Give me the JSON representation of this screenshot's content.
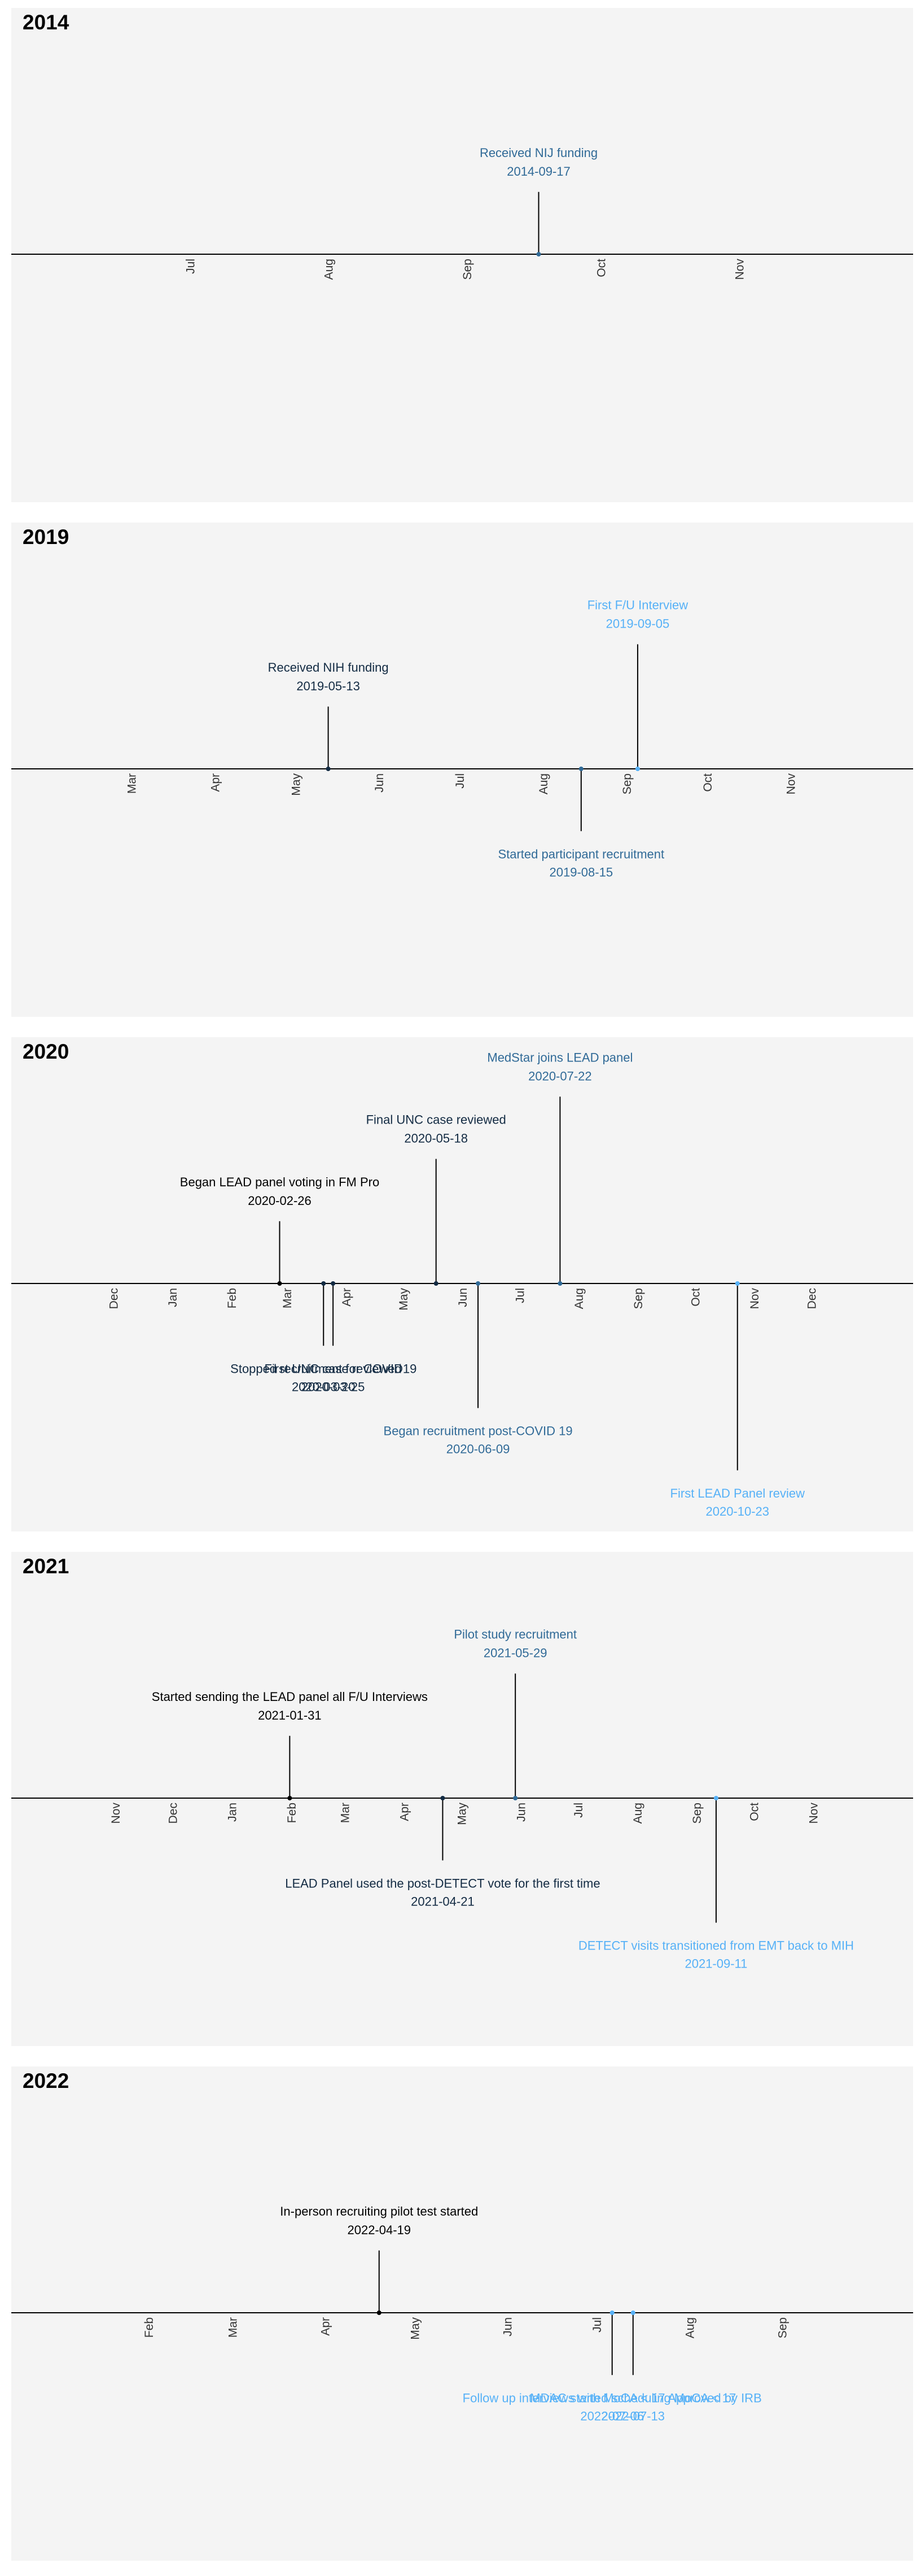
{
  "colors": {
    "panel_bg": "#f4f4f4",
    "axis": "#000000",
    "palette": {
      "black": "#000000",
      "navy": "#132b43",
      "mid_blue": "#306a97",
      "light_blue": "#56b1f7"
    }
  },
  "chart_data": [
    {
      "type": "timeline",
      "title": "2014",
      "x_range": [
        "2014-06-01",
        "2014-11-30"
      ],
      "ticks": [
        {
          "date": "2014-07-01",
          "label": "Jul"
        },
        {
          "date": "2014-08-01",
          "label": "Aug"
        },
        {
          "date": "2014-09-01",
          "label": "Sep"
        },
        {
          "date": "2014-10-01",
          "label": "Oct"
        },
        {
          "date": "2014-11-01",
          "label": "Nov"
        }
      ],
      "events": [
        {
          "date": "2014-09-17",
          "label": "Received NIJ funding",
          "date_label": "2014-09-17",
          "level": 0.75,
          "color": "mid_blue"
        }
      ]
    },
    {
      "type": "timeline",
      "title": "2019",
      "x_range": [
        "2019-02-01",
        "2019-11-30"
      ],
      "ticks": [
        {
          "date": "2019-03-01",
          "label": "Mar"
        },
        {
          "date": "2019-04-01",
          "label": "Apr"
        },
        {
          "date": "2019-05-01",
          "label": "May"
        },
        {
          "date": "2019-06-01",
          "label": "Jun"
        },
        {
          "date": "2019-07-01",
          "label": "Jul"
        },
        {
          "date": "2019-08-01",
          "label": "Aug"
        },
        {
          "date": "2019-09-01",
          "label": "Sep"
        },
        {
          "date": "2019-10-01",
          "label": "Oct"
        },
        {
          "date": "2019-11-01",
          "label": "Nov"
        }
      ],
      "events": [
        {
          "date": "2019-05-13",
          "label": "Received NIH funding",
          "date_label": "2019-05-13",
          "level": 0.75,
          "color": "navy"
        },
        {
          "date": "2019-08-15",
          "label": "Started participant recruitment",
          "date_label": "2019-08-15",
          "level": -0.75,
          "color": "mid_blue"
        },
        {
          "date": "2019-09-05",
          "label": "First F/U Interview",
          "date_label": "2019-09-05",
          "level": 1.5,
          "color": "light_blue"
        }
      ]
    },
    {
      "type": "timeline",
      "title": "2020",
      "x_range": [
        "2019-11-01",
        "2020-12-31"
      ],
      "ticks": [
        {
          "date": "2019-12-01",
          "label": "Dec"
        },
        {
          "date": "2020-01-01",
          "label": "Jan"
        },
        {
          "date": "2020-02-01",
          "label": "Feb"
        },
        {
          "date": "2020-03-01",
          "label": "Mar"
        },
        {
          "date": "2020-04-01",
          "label": "Apr"
        },
        {
          "date": "2020-05-01",
          "label": "May"
        },
        {
          "date": "2020-06-01",
          "label": "Jun"
        },
        {
          "date": "2020-07-01",
          "label": "Jul"
        },
        {
          "date": "2020-08-01",
          "label": "Aug"
        },
        {
          "date": "2020-09-01",
          "label": "Sep"
        },
        {
          "date": "2020-10-01",
          "label": "Oct"
        },
        {
          "date": "2020-11-01",
          "label": "Nov"
        },
        {
          "date": "2020-12-01",
          "label": "Dec"
        }
      ],
      "events": [
        {
          "date": "2020-02-26",
          "label": "Began LEAD panel voting in FM Pro",
          "date_label": "2020-02-26",
          "level": 0.75,
          "color": "black"
        },
        {
          "date": "2020-03-20",
          "label": "Stopped recruitment for COVID19",
          "date_label": "2020-03-20",
          "level": -0.75,
          "color": "navy"
        },
        {
          "date": "2020-03-25",
          "label": "First UNC case reviewed",
          "date_label": "2020-03-25",
          "level": -0.75,
          "color": "navy"
        },
        {
          "date": "2020-05-18",
          "label": "Final UNC case reviewed",
          "date_label": "2020-05-18",
          "level": 1.5,
          "color": "navy"
        },
        {
          "date": "2020-06-09",
          "label": "Began recruitment post-COVID 19",
          "date_label": "2020-06-09",
          "level": -1.5,
          "color": "mid_blue"
        },
        {
          "date": "2020-07-22",
          "label": "MedStar joins LEAD panel",
          "date_label": "2020-07-22",
          "level": 2.25,
          "color": "mid_blue"
        },
        {
          "date": "2020-10-23",
          "label": "First LEAD Panel review",
          "date_label": "2020-10-23",
          "level": -2.25,
          "color": "light_blue"
        }
      ]
    },
    {
      "type": "timeline",
      "title": "2021",
      "x_range": [
        "2020-10-01",
        "2021-11-30"
      ],
      "ticks": [
        {
          "date": "2020-11-01",
          "label": "Nov"
        },
        {
          "date": "2020-12-01",
          "label": "Dec"
        },
        {
          "date": "2021-01-01",
          "label": "Jan"
        },
        {
          "date": "2021-02-01",
          "label": "Feb"
        },
        {
          "date": "2021-03-01",
          "label": "Mar"
        },
        {
          "date": "2021-04-01",
          "label": "Apr"
        },
        {
          "date": "2021-05-01",
          "label": "May"
        },
        {
          "date": "2021-06-01",
          "label": "Jun"
        },
        {
          "date": "2021-07-01",
          "label": "Jul"
        },
        {
          "date": "2021-08-01",
          "label": "Aug"
        },
        {
          "date": "2021-09-01",
          "label": "Sep"
        },
        {
          "date": "2021-10-01",
          "label": "Oct"
        },
        {
          "date": "2021-11-01",
          "label": "Nov"
        }
      ],
      "events": [
        {
          "date": "2021-01-31",
          "label": "Started sending the LEAD panel all F/U Interviews",
          "date_label": "2021-01-31",
          "level": 0.75,
          "color": "black"
        },
        {
          "date": "2021-04-21",
          "label": "LEAD Panel used the post-DETECT vote for the first time",
          "date_label": "2021-04-21",
          "level": -0.75,
          "color": "navy"
        },
        {
          "date": "2021-05-29",
          "label": "Pilot study recruitment",
          "date_label": "2021-05-29",
          "level": 1.5,
          "color": "mid_blue"
        },
        {
          "date": "2021-09-11",
          "label": "DETECT visits transitioned from EMT back to MIH",
          "date_label": "2021-09-11",
          "level": -1.5,
          "color": "light_blue"
        }
      ]
    },
    {
      "type": "timeline",
      "title": "2022",
      "x_range": [
        "2022-01-01",
        "2022-09-30"
      ],
      "ticks": [
        {
          "date": "2022-02-01",
          "label": "Feb"
        },
        {
          "date": "2022-03-01",
          "label": "Mar"
        },
        {
          "date": "2022-04-01",
          "label": "Apr"
        },
        {
          "date": "2022-05-01",
          "label": "May"
        },
        {
          "date": "2022-06-01",
          "label": "Jun"
        },
        {
          "date": "2022-07-01",
          "label": "Jul"
        },
        {
          "date": "2022-08-01",
          "label": "Aug"
        },
        {
          "date": "2022-09-01",
          "label": "Sep"
        }
      ],
      "events": [
        {
          "date": "2022-04-19",
          "label": "In-person recruiting pilot test started",
          "date_label": "2022-04-19",
          "level": 0.75,
          "color": "black"
        },
        {
          "date": "2022-07-06",
          "label": "Follow up interviews with MoCA < 17 Approved by IRB",
          "date_label": "2022-07-06",
          "level": -0.75,
          "color": "light_blue"
        },
        {
          "date": "2022-07-13",
          "label": "MDAC started scheduling MoCA < 17",
          "date_label": "2022-07-13",
          "level": -0.75,
          "color": "light_blue"
        }
      ]
    }
  ]
}
